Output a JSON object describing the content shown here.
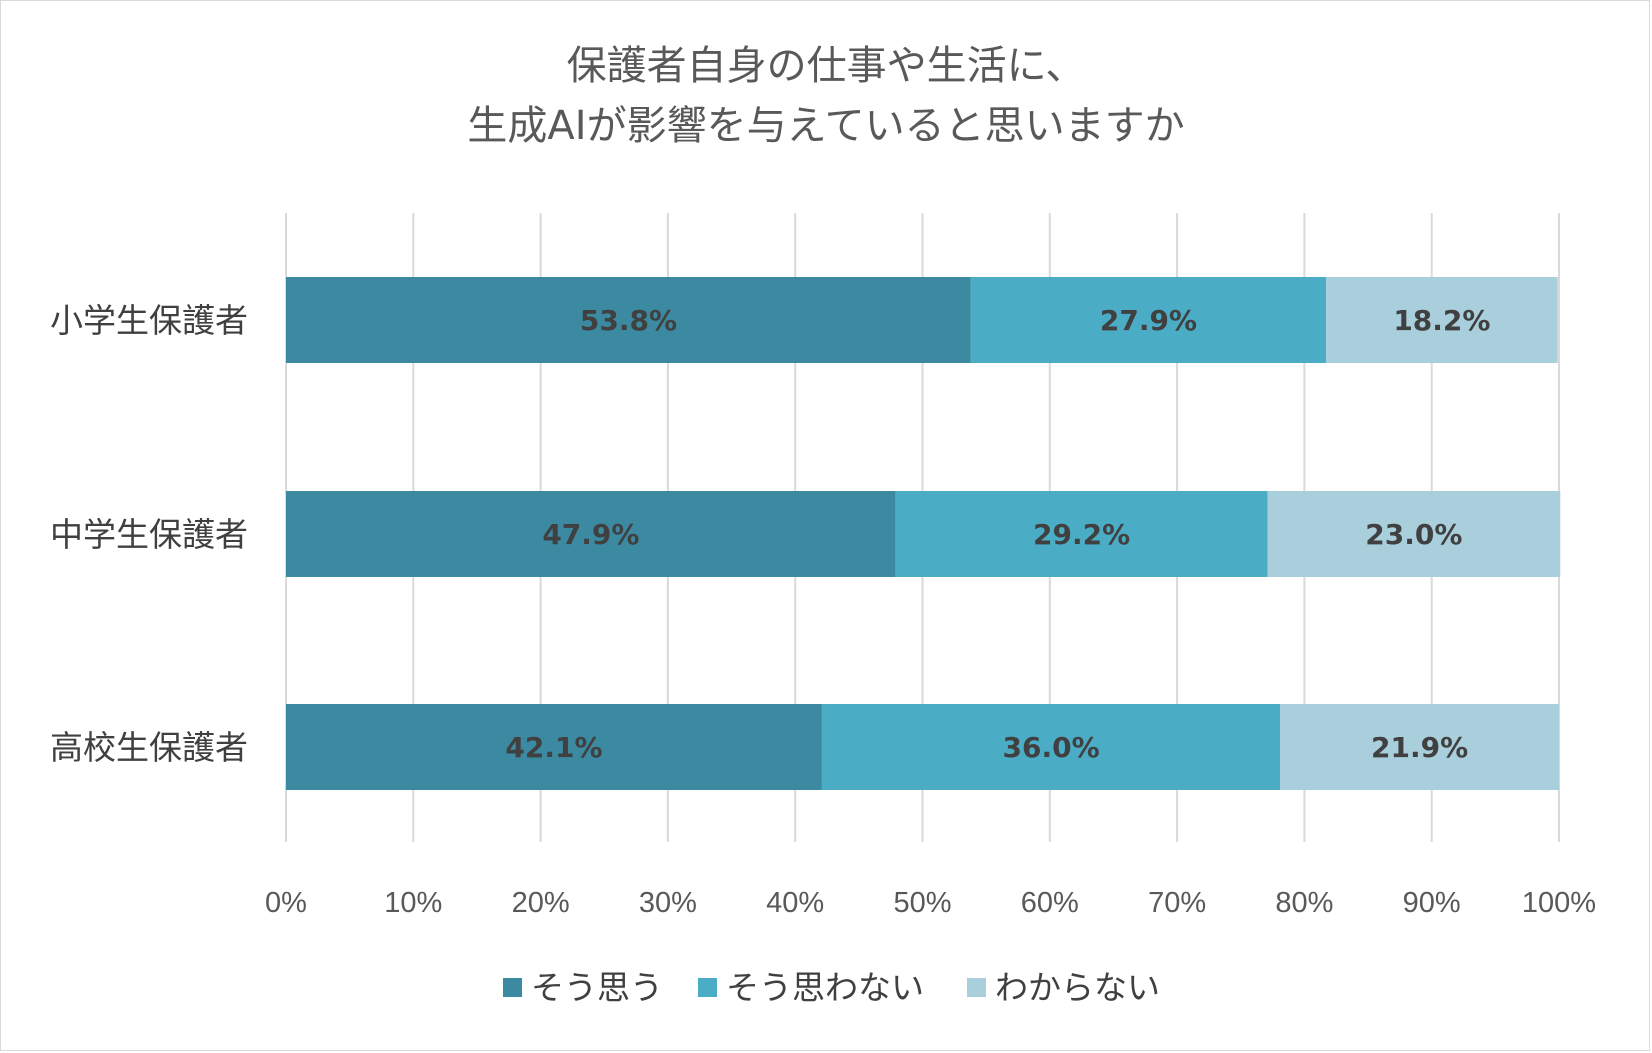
{
  "chart_data": {
    "type": "bar",
    "orientation": "horizontal",
    "stacked": "100%",
    "title": [
      "保護者自身の仕事や生活に、",
      "生成AIが影響を与えていると思いますか"
    ],
    "categories": [
      "小学生保護者",
      "中学生保護者",
      "高校生保護者"
    ],
    "series": [
      {
        "name": "そう思う",
        "color": "#3c8aa1",
        "values": [
          53.8,
          47.9,
          42.1
        ]
      },
      {
        "name": "そう思わない",
        "color": "#4bacc6",
        "values": [
          27.9,
          29.2,
          36.0
        ]
      },
      {
        "name": "わからない",
        "color": "#a9cfdc",
        "values": [
          18.2,
          23.0,
          21.9
        ]
      }
    ],
    "data_label_format": "0.0%",
    "x_ticks": [
      "0%",
      "10%",
      "20%",
      "30%",
      "40%",
      "50%",
      "60%",
      "70%",
      "80%",
      "90%",
      "100%"
    ],
    "xlim": [
      0,
      100
    ],
    "grid": "vertical",
    "legend_position": "bottom"
  }
}
